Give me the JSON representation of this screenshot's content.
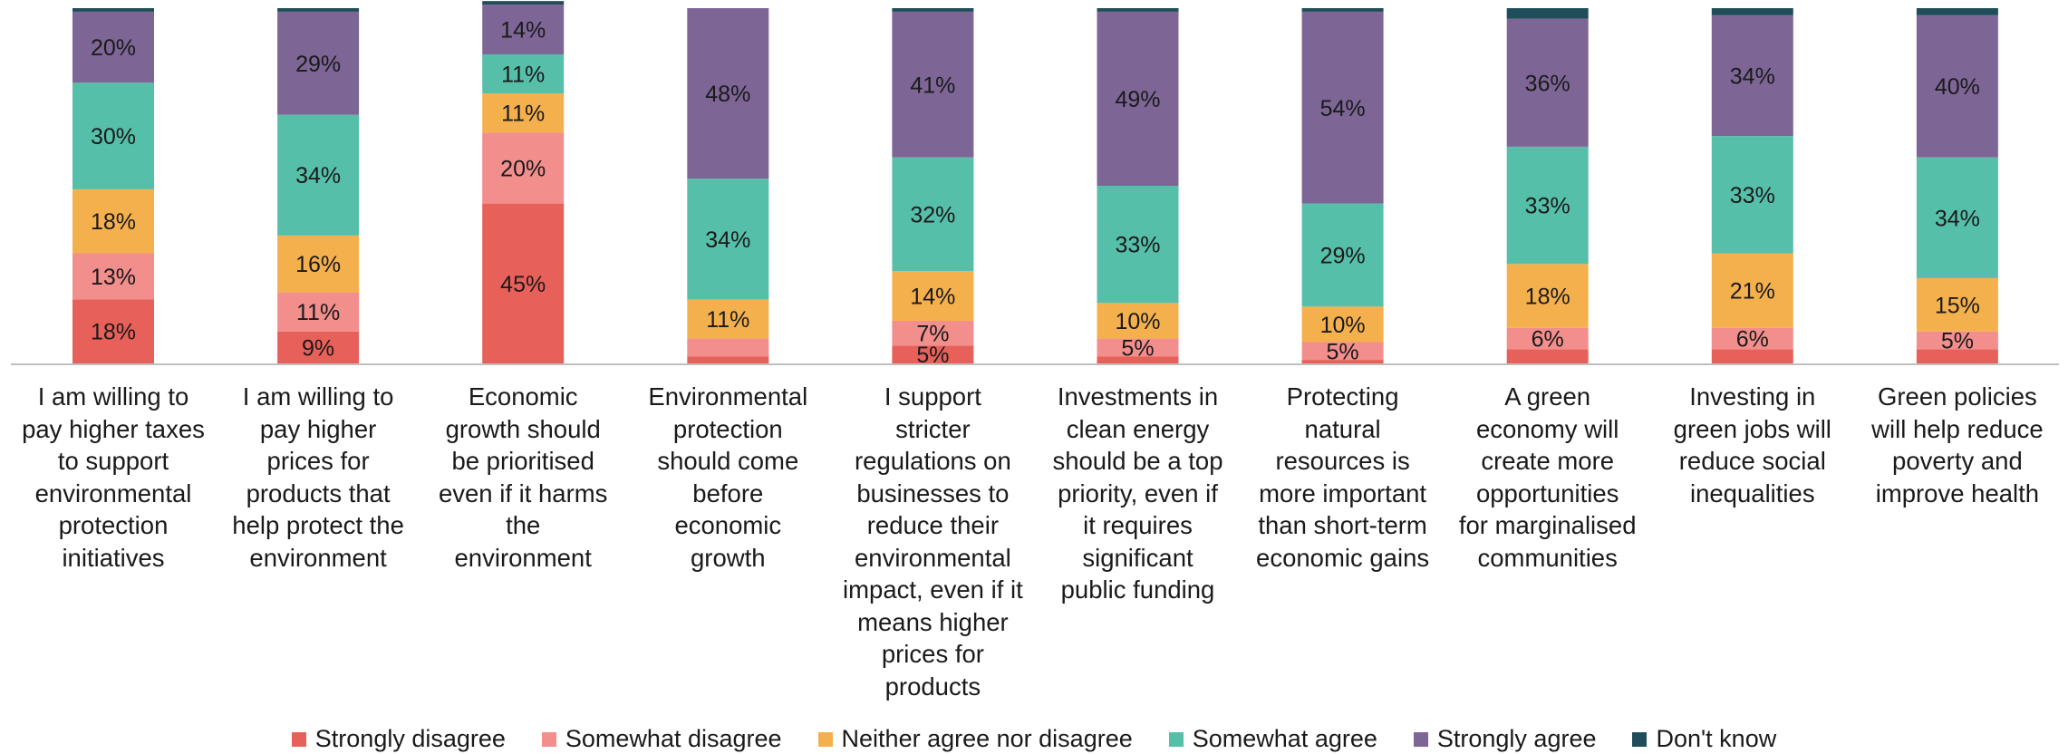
{
  "chart_data": {
    "type": "bar",
    "stacked": true,
    "title": "",
    "xlabel": "",
    "ylabel": "",
    "ylim": [
      0,
      100
    ],
    "grid": false,
    "legend_position": "bottom",
    "categories": [
      "I am willing to pay higher taxes to support environmental protection initiatives",
      "I am willing to pay higher prices for products that help protect the environment",
      "Economic growth should be prioritised even if it harms the environment",
      "Environmental protection should come before economic growth",
      "I support stricter regulations on businesses to reduce their environmental impact, even if it means higher prices for products",
      "Investments in clean energy should be a top priority, even if it requires significant public funding",
      "Protecting natural resources is more important than short-term economic gains",
      "A green economy will create more opportunities for marginalised communities",
      "Investing in green jobs will reduce social inequalities",
      "Green policies will help reduce poverty and improve health"
    ],
    "category_lines": [
      [
        "I am willing to",
        "pay higher taxes",
        "to support",
        "environmental",
        "protection",
        "initiatives"
      ],
      [
        "I am willing to",
        "pay higher",
        "prices for",
        "products that",
        "help protect the",
        "environment"
      ],
      [
        "Economic",
        "growth should",
        "be prioritised",
        "even if it harms",
        "the",
        "environment"
      ],
      [
        "Environmental",
        "protection",
        "should come",
        "before",
        "economic",
        "growth"
      ],
      [
        "I support",
        "stricter",
        "regulations on",
        "businesses to",
        "reduce their",
        "environmental",
        "impact, even if it",
        "means higher",
        "prices for",
        "products"
      ],
      [
        "Investments in",
        "clean energy",
        "should be a top",
        "priority, even if",
        "it requires",
        "significant",
        "public funding"
      ],
      [
        "Protecting",
        "natural",
        "resources is",
        "more important",
        "than short-term",
        "economic gains"
      ],
      [
        "A green",
        "economy will",
        "create more",
        "opportunities",
        "for marginalised",
        "communities"
      ],
      [
        "Investing in",
        "green jobs will",
        "reduce social",
        "inequalities"
      ],
      [
        "Green policies",
        "will help reduce",
        "poverty and",
        "improve health"
      ]
    ],
    "series": [
      {
        "name": "Strongly disagree",
        "color": "#e8605a",
        "values": [
          18,
          9,
          45,
          2,
          5,
          2,
          1,
          4,
          4,
          4
        ]
      },
      {
        "name": "Somewhat disagree",
        "color": "#f28e8c",
        "values": [
          13,
          11,
          20,
          5,
          7,
          5,
          5,
          6,
          6,
          5
        ]
      },
      {
        "name": "Neither agree nor disagree",
        "color": "#f5b04e",
        "values": [
          18,
          16,
          11,
          11,
          14,
          10,
          10,
          18,
          21,
          15
        ]
      },
      {
        "name": "Somewhat agree",
        "color": "#56bfa9",
        "values": [
          30,
          34,
          11,
          34,
          32,
          33,
          29,
          33,
          33,
          34
        ]
      },
      {
        "name": "Strongly agree",
        "color": "#7d6596",
        "values": [
          20,
          29,
          14,
          48,
          41,
          49,
          54,
          36,
          34,
          40
        ]
      },
      {
        "name": "Don't know",
        "color": "#1f4e5a",
        "values": [
          1,
          1,
          1,
          0,
          1,
          1,
          1,
          3,
          2,
          2
        ]
      }
    ],
    "data_labels": [
      [
        "18%",
        "13%",
        "18%",
        "30%",
        "20%",
        ""
      ],
      [
        "9%",
        "11%",
        "16%",
        "34%",
        "29%",
        ""
      ],
      [
        "45%",
        "20%",
        "11%",
        "11%",
        "14%",
        ""
      ],
      [
        "",
        "",
        "11%",
        "34%",
        "48%",
        ""
      ],
      [
        "5%",
        "7%",
        "14%",
        "32%",
        "41%",
        ""
      ],
      [
        "",
        "5%",
        "10%",
        "33%",
        "49%",
        ""
      ],
      [
        "",
        "5%",
        "10%",
        "29%",
        "54%",
        ""
      ],
      [
        "",
        "6%",
        "18%",
        "33%",
        "36%",
        ""
      ],
      [
        "",
        "6%",
        "21%",
        "33%",
        "34%",
        ""
      ],
      [
        "",
        "5%",
        "15%",
        "34%",
        "40%",
        ""
      ]
    ]
  }
}
